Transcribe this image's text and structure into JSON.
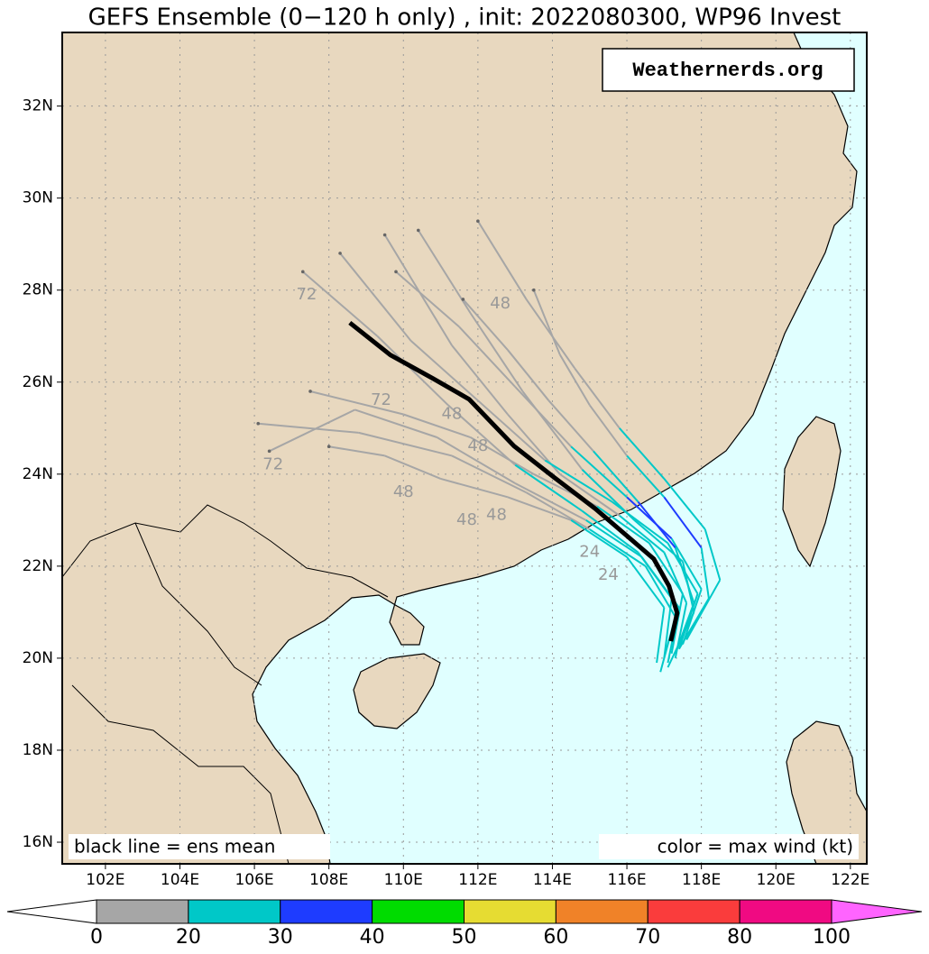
{
  "title": "GEFS Ensemble (0−120 h only) , init: 2022080300, WP96 Invest",
  "watermark": "Weathernerds.org",
  "mean_note": "black line = ens mean",
  "color_note": "color = max wind (kt)",
  "map": {
    "lonlim": [
      100.84,
      122.44
    ],
    "latlim": [
      15.53,
      33.6
    ],
    "lonticks": [
      {
        "value": 102,
        "label": "102E"
      },
      {
        "value": 104,
        "label": "104E"
      },
      {
        "value": 106,
        "label": "106E"
      },
      {
        "value": 108,
        "label": "108E"
      },
      {
        "value": 110,
        "label": "110E"
      },
      {
        "value": 112,
        "label": "112E"
      },
      {
        "value": 114,
        "label": "114E"
      },
      {
        "value": 116,
        "label": "116E"
      },
      {
        "value": 118,
        "label": "118E"
      },
      {
        "value": 120,
        "label": "120E"
      },
      {
        "value": 122,
        "label": "122E"
      }
    ],
    "latticks": [
      {
        "value": 16,
        "label": "16N"
      },
      {
        "value": 18,
        "label": "18N"
      },
      {
        "value": 20,
        "label": "20N"
      },
      {
        "value": 22,
        "label": "22N"
      },
      {
        "value": 24,
        "label": "24N"
      },
      {
        "value": 26,
        "label": "26N"
      },
      {
        "value": 28,
        "label": "28N"
      },
      {
        "value": 30,
        "label": "30N"
      },
      {
        "value": 32,
        "label": "32N"
      }
    ],
    "mean_track": {
      "color": "#000000",
      "lon": [
        117.18,
        117.35,
        117.13,
        116.72,
        115.87,
        115.15,
        114.06,
        112.97,
        111.76,
        110.79,
        109.65,
        108.56
      ],
      "lat": [
        20.37,
        20.98,
        21.57,
        22.16,
        22.75,
        23.25,
        23.92,
        24.61,
        25.63,
        26.08,
        26.59,
        27.29
      ]
    },
    "members": [
      {
        "lon": [
          117.3,
          117.6,
          117.0,
          115.8,
          114.2,
          112.8,
          111.3,
          109.5
        ],
        "lat": [
          20.0,
          21.2,
          22.3,
          23.1,
          24.0,
          25.3,
          26.8,
          29.2
        ],
        "wind": [
          22,
          26,
          24,
          19,
          15,
          12,
          10,
          8
        ]
      },
      {
        "lon": [
          117.1,
          117.8,
          117.5,
          116.2,
          114.8,
          113.2,
          111.8,
          110.4
        ],
        "lat": [
          19.8,
          21.0,
          22.1,
          23.0,
          24.1,
          25.8,
          27.5,
          29.3
        ],
        "wind": [
          23,
          27,
          28,
          22,
          17,
          13,
          10,
          8
        ]
      },
      {
        "lon": [
          116.9,
          117.3,
          116.5,
          115.0,
          113.3,
          111.3,
          108.8,
          106.1
        ],
        "lat": [
          19.7,
          20.9,
          22.0,
          22.8,
          23.6,
          24.4,
          24.9,
          25.1
        ],
        "wind": [
          24,
          27,
          25,
          19,
          14,
          11,
          9,
          7
        ]
      },
      {
        "lon": [
          117.4,
          118.2,
          118.0,
          117.0,
          116.0,
          115.0,
          114.2,
          113.5
        ],
        "lat": [
          20.2,
          21.3,
          22.4,
          23.5,
          24.4,
          25.5,
          26.6,
          28.0
        ],
        "wind": [
          22,
          26,
          31,
          24,
          18,
          14,
          11,
          9
        ]
      },
      {
        "lon": [
          117.2,
          117.5,
          116.6,
          115.2,
          113.5,
          111.8,
          110.0,
          107.5
        ],
        "lat": [
          20.1,
          21.4,
          22.5,
          23.3,
          24.0,
          24.8,
          25.3,
          25.8
        ],
        "wind": [
          21,
          25,
          23,
          18,
          14,
          12,
          9,
          7
        ]
      },
      {
        "lon": [
          117.5,
          118.0,
          117.2,
          116.0,
          114.5,
          113.0,
          111.5,
          109.8
        ],
        "lat": [
          20.3,
          21.5,
          22.6,
          23.5,
          24.6,
          25.9,
          27.2,
          28.4
        ],
        "wind": [
          22,
          28,
          32,
          25,
          18,
          13,
          11,
          9
        ]
      },
      {
        "lon": [
          116.8,
          117.0,
          116.0,
          114.5,
          112.8,
          111.0,
          109.5,
          108.0
        ],
        "lat": [
          19.9,
          21.1,
          22.2,
          23.0,
          23.5,
          23.9,
          24.4,
          24.6
        ],
        "wind": [
          23,
          26,
          24,
          19,
          14,
          11,
          9,
          8
        ]
      },
      {
        "lon": [
          117.6,
          118.5,
          118.1,
          117.0,
          115.8,
          114.6,
          113.3,
          112.0
        ],
        "lat": [
          20.4,
          21.7,
          22.8,
          23.9,
          25.0,
          26.3,
          27.8,
          29.5
        ],
        "wind": [
          22,
          25,
          27,
          22,
          17,
          13,
          10,
          8
        ]
      },
      {
        "lon": [
          117.0,
          117.2,
          116.3,
          114.8,
          113.0,
          111.2,
          109.3,
          107.3
        ],
        "lat": [
          20.0,
          21.3,
          22.3,
          23.2,
          24.2,
          25.5,
          27.0,
          28.4
        ],
        "wind": [
          23,
          27,
          26,
          20,
          15,
          12,
          10,
          8
        ]
      },
      {
        "lon": [
          117.3,
          117.8,
          117.3,
          116.3,
          115.1,
          113.9,
          112.8,
          111.6
        ],
        "lat": [
          20.1,
          21.2,
          22.4,
          23.4,
          24.5,
          25.6,
          26.7,
          27.8
        ],
        "wind": [
          22,
          26,
          33,
          26,
          19,
          14,
          11,
          9
        ]
      },
      {
        "lon": [
          117.1,
          117.4,
          116.4,
          114.9,
          113.0,
          110.9,
          108.7,
          106.4
        ],
        "lat": [
          19.9,
          21.1,
          22.2,
          23.0,
          23.8,
          24.8,
          25.4,
          24.5
        ],
        "wind": [
          23,
          26,
          25,
          19,
          14,
          11,
          9,
          7
        ]
      },
      {
        "lon": [
          117.4,
          117.9,
          117.1,
          115.6,
          113.8,
          112.0,
          110.2,
          108.3
        ],
        "lat": [
          20.2,
          21.4,
          22.5,
          23.4,
          24.3,
          25.6,
          26.9,
          28.8
        ],
        "wind": [
          22,
          27,
          29,
          21,
          16,
          12,
          10,
          8
        ]
      }
    ],
    "hour_labels": [
      {
        "text": "72",
        "lon": 107.4,
        "lat": 27.9
      },
      {
        "text": "72",
        "lon": 109.4,
        "lat": 25.6
      },
      {
        "text": "72",
        "lon": 106.5,
        "lat": 24.2
      },
      {
        "text": "48",
        "lon": 112.6,
        "lat": 27.7
      },
      {
        "text": "48",
        "lon": 111.3,
        "lat": 25.3
      },
      {
        "text": "48",
        "lon": 112.0,
        "lat": 24.6
      },
      {
        "text": "48",
        "lon": 110.0,
        "lat": 23.6
      },
      {
        "text": "48",
        "lon": 111.7,
        "lat": 23.0
      },
      {
        "text": "48",
        "lon": 112.5,
        "lat": 23.1
      },
      {
        "text": "24",
        "lon": 115.0,
        "lat": 22.3
      },
      {
        "text": "24",
        "lon": 115.5,
        "lat": 21.8
      }
    ]
  },
  "colorbar": {
    "levels": [
      0,
      20,
      30,
      40,
      50,
      60,
      70,
      80,
      100
    ],
    "colors": [
      "#a6a6a6",
      "#00c8c8",
      "#1e3cff",
      "#00dc00",
      "#e6dc32",
      "#f08228",
      "#fa3c3c",
      "#f00a82"
    ],
    "under_color": "#ffffff",
    "over_color": "#ff64ff"
  }
}
